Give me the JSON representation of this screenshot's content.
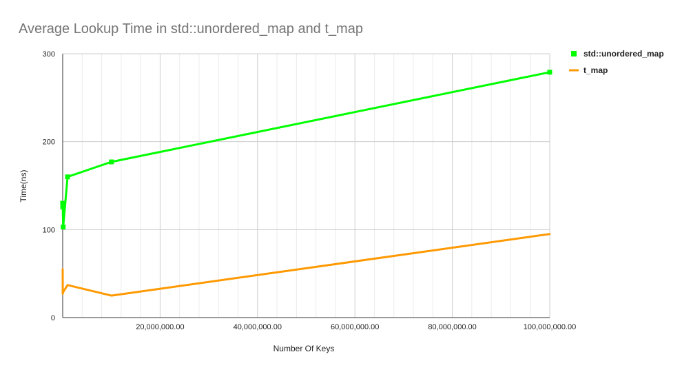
{
  "chart_data": {
    "type": "line",
    "title": "Average Lookup Time in std::unordered_map and t_map",
    "xlabel": "Number Of Keys",
    "ylabel": "Time(ns)",
    "xlim": [
      0,
      100000000
    ],
    "ylim": [
      0,
      300
    ],
    "x_ticks": [
      20000000,
      40000000,
      60000000,
      80000000,
      100000000
    ],
    "x_tick_labels": [
      "20,000,000.00",
      "40,000,000.00",
      "60,000,000.00",
      "80,000,000.00",
      "100,000,000.00"
    ],
    "y_ticks": [
      0,
      100,
      200,
      300
    ],
    "y_tick_labels": [
      "0",
      "100",
      "200",
      "300"
    ],
    "grid": true,
    "legend_position": "top-right",
    "x": [
      1000,
      10000,
      100000,
      1000000,
      10000000,
      100000000
    ],
    "series": [
      {
        "name": "std::unordered_map",
        "color": "#00ff00",
        "marker": "square",
        "values": [
          130,
          126,
          103,
          160,
          177,
          279
        ]
      },
      {
        "name": "t_map",
        "color": "#ff9900",
        "marker": "none",
        "values": [
          55,
          27,
          29,
          37,
          25,
          95
        ]
      }
    ]
  }
}
